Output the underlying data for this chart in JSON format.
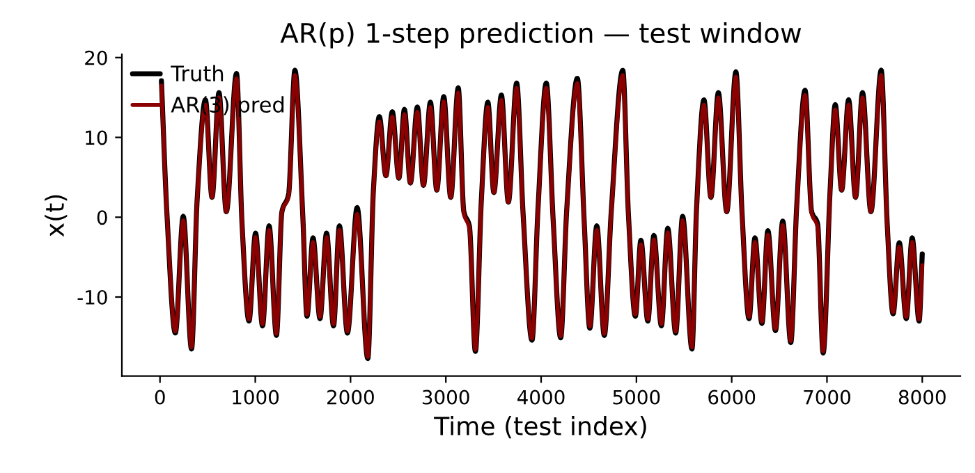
{
  "chart_data": {
    "type": "line",
    "title": "AR(p) 1-step prediction — test window",
    "xlabel": "Time (test index)",
    "ylabel": "x(t)",
    "x": [
      15,
      73,
      161,
      244,
      331,
      390,
      477,
      546,
      619,
      696,
      803,
      861,
      934,
      1003,
      1076,
      1145,
      1222,
      1280,
      1349,
      1416,
      1499,
      1543,
      1606,
      1679,
      1748,
      1821,
      1883,
      1967,
      2069,
      2181,
      2240,
      2302,
      2371,
      2438,
      2507,
      2565,
      2628,
      2701,
      2765,
      2838,
      2905,
      2978,
      3051,
      3130,
      3189,
      3247,
      3310,
      3373,
      3441,
      3504,
      3583,
      3656,
      3743,
      3811,
      3904,
      3967,
      4054,
      4127,
      4205,
      4269,
      4380,
      4453,
      4511,
      4584,
      4663,
      4736,
      4857,
      4916,
      4989,
      5047,
      5120,
      5183,
      5262,
      5329,
      5412,
      5485,
      5583,
      5631,
      5709,
      5782,
      5860,
      5948,
      6044,
      6109,
      6182,
      6244,
      6317,
      6380,
      6459,
      6536,
      6620,
      6682,
      6770,
      6839,
      6901,
      6960,
      7033,
      7087,
      7154,
      7227,
      7300,
      7373,
      7461,
      7569,
      7632,
      7694,
      7759,
      7832,
      7894,
      7967,
      8000
    ],
    "series": [
      {
        "name": "Truth",
        "color": "#000000",
        "values": [
          17.1,
          0.4,
          -14.5,
          0.1,
          -16.5,
          2.2,
          14.7,
          2.5,
          15.6,
          0.7,
          18,
          -0.8,
          -13,
          -2,
          -13.6,
          -1.1,
          -14.8,
          0.7,
          2.8,
          18.4,
          0.1,
          -12.4,
          -2.6,
          -12.7,
          -2,
          -13.6,
          -1.1,
          -14.5,
          1.2,
          -17.7,
          3.4,
          12.6,
          5.2,
          13.2,
          4.9,
          13.5,
          4.3,
          13.8,
          4,
          14.4,
          3.4,
          15.1,
          2.5,
          16.2,
          0.7,
          -1.1,
          -16.8,
          2.2,
          14.4,
          3.1,
          15.3,
          1.9,
          16.8,
          0.4,
          -15.4,
          1,
          16.8,
          -0.5,
          -15.1,
          1,
          17.4,
          -0.8,
          -13.9,
          -1.1,
          -14.8,
          0.7,
          18.4,
          0.4,
          -12.4,
          -2.9,
          -13,
          -2.3,
          -13.6,
          -1.4,
          -14.5,
          0.1,
          -16.5,
          1,
          14.7,
          2.5,
          15.6,
          0.7,
          18.2,
          0.4,
          -12.7,
          -2.6,
          -13.3,
          -1.7,
          -14.2,
          -0.5,
          -15.7,
          1.3,
          15.9,
          0.7,
          -0.8,
          -17,
          3.4,
          14.1,
          3.4,
          14.7,
          2.5,
          15.6,
          0.7,
          18.4,
          -0.8,
          -12.1,
          -3.2,
          -12.7,
          -2.6,
          -13,
          -4.6
        ]
      },
      {
        "name": "AR(3) pred",
        "color": "#8b0000",
        "values": [
          16.5,
          0.4,
          -14.3,
          -0.4,
          -16.3,
          2.2,
          14.1,
          2.5,
          15,
          0.7,
          17.4,
          -0.8,
          -12.8,
          -2.5,
          -13.4,
          -1.6,
          -14.6,
          0.7,
          2.6,
          17.8,
          0.1,
          -12.2,
          -3.1,
          -12.5,
          -2.5,
          -13.4,
          -1.6,
          -14.3,
          0.4,
          -17.5,
          3.2,
          12,
          5.2,
          12.6,
          4.9,
          12.9,
          4.3,
          13.2,
          4,
          13.8,
          3.4,
          14.5,
          2.5,
          15.6,
          0.5,
          -1.4,
          -16.6,
          2,
          13.8,
          3.1,
          14.7,
          1.9,
          16.2,
          0.2,
          -15.2,
          0.8,
          16.2,
          -0.7,
          -14.9,
          0.8,
          16.8,
          -1,
          -13.7,
          -1.6,
          -14.6,
          0.5,
          17.8,
          0.2,
          -12.2,
          -3.4,
          -12.8,
          -2.8,
          -13.4,
          -1.9,
          -14.3,
          -0.4,
          -16.3,
          0.8,
          14.1,
          2.5,
          15,
          0.7,
          17.6,
          0.2,
          -12.5,
          -3.1,
          -13.1,
          -2.2,
          -14,
          -1,
          -15.5,
          1.1,
          15.3,
          0.5,
          -1.2,
          -16.8,
          3.2,
          13.5,
          3.4,
          14.1,
          2.5,
          15,
          0.7,
          17.8,
          -1,
          -11.9,
          -3.7,
          -12.5,
          -3.1,
          -12.8,
          -6
        ]
      }
    ],
    "xlim": [
      -400,
      8400
    ],
    "ylim": [
      -19.9,
      20.4
    ],
    "xticks": [
      0,
      1000,
      2000,
      3000,
      4000,
      5000,
      6000,
      7000,
      8000
    ],
    "yticks": [
      -10,
      0,
      10,
      20
    ],
    "legend": "top left",
    "grid": false,
    "line_style": "solid",
    "marker": "none"
  }
}
